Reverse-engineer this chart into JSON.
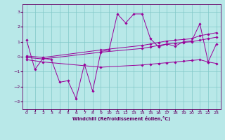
{
  "xlabel": "Windchill (Refroidissement éolien,°C)",
  "bg_color": "#b8e8e8",
  "grid_color": "#80c8c8",
  "line_color": "#990099",
  "text_color": "#660066",
  "xlim": [
    -0.5,
    23.5
  ],
  "ylim": [
    -3.5,
    3.5
  ],
  "yticks": [
    -3,
    -2,
    -1,
    0,
    1,
    2,
    3
  ],
  "xticks": [
    0,
    1,
    2,
    3,
    4,
    5,
    6,
    7,
    8,
    9,
    10,
    11,
    12,
    13,
    14,
    15,
    16,
    17,
    18,
    19,
    20,
    21,
    22,
    23
  ],
  "s1_x": [
    0,
    1,
    2,
    3,
    4,
    5,
    6,
    7,
    8,
    9,
    10,
    11,
    12,
    13,
    14,
    15,
    16,
    17,
    18,
    19,
    20,
    21,
    22,
    23
  ],
  "s1_y": [
    1.1,
    -0.85,
    -0.1,
    -0.2,
    -1.7,
    -1.6,
    -2.8,
    -0.5,
    -2.3,
    0.35,
    0.45,
    2.85,
    2.25,
    2.85,
    2.85,
    1.2,
    0.65,
    0.85,
    0.7,
    1.0,
    1.05,
    2.2,
    -0.35,
    0.85
  ],
  "s2_x": [
    0,
    2,
    9,
    14,
    15,
    16,
    17,
    18,
    19,
    20,
    21,
    22,
    23
  ],
  "s2_y": [
    0.05,
    -0.05,
    0.45,
    0.75,
    0.85,
    0.95,
    1.05,
    1.1,
    1.15,
    1.2,
    1.4,
    1.5,
    1.6
  ],
  "s3_x": [
    0,
    2,
    9,
    14,
    15,
    16,
    17,
    18,
    19,
    20,
    21,
    22,
    23
  ],
  "s3_y": [
    -0.05,
    -0.15,
    0.3,
    0.55,
    0.65,
    0.75,
    0.85,
    0.9,
    0.95,
    1.0,
    1.1,
    1.2,
    1.3
  ],
  "s4_x": [
    0,
    2,
    9,
    14,
    15,
    16,
    17,
    18,
    19,
    20,
    21,
    22,
    23
  ],
  "s4_y": [
    -0.2,
    -0.35,
    -0.7,
    -0.55,
    -0.5,
    -0.45,
    -0.4,
    -0.35,
    -0.3,
    -0.25,
    -0.2,
    -0.35,
    -0.45
  ]
}
